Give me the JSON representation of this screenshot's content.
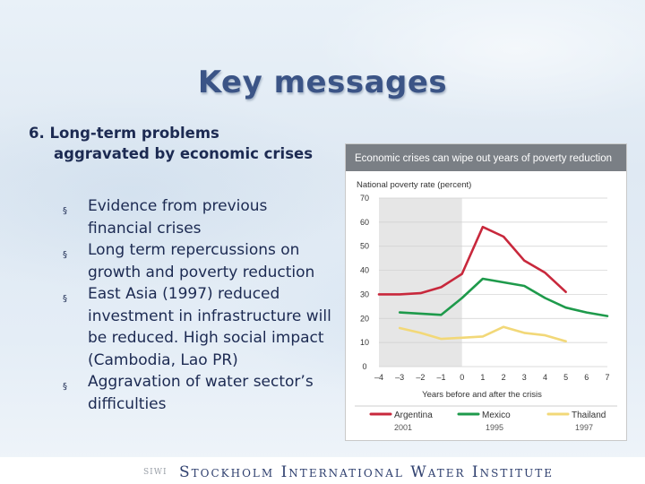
{
  "slide": {
    "title": "Key messages",
    "subtitle_line1": "6. Long-term problems",
    "subtitle_line2": "aggravated by economic crises",
    "bullets": [
      "Evidence from previous financial crises",
      "Long term repercussions on growth and poverty reduction",
      "East Asia (1997) reduced investment in infrastructure will be reduced. High social impact (Cambodia, Lao PR)",
      "Aggravation of water sector’s difficulties"
    ],
    "bullet_marker": "§",
    "footer_logo": "SIWI",
    "footer_org": "Stockholm International Water Institute"
  },
  "chart_data": {
    "type": "line",
    "title": "Economic crises can wipe out years of poverty reduction",
    "ylabel": "National poverty rate (percent)",
    "xlabel": "Years before and after the crisis",
    "xlim": [
      -4,
      7
    ],
    "ylim": [
      0,
      70
    ],
    "xticks": [
      -4,
      -3,
      -2,
      -1,
      0,
      1,
      2,
      3,
      4,
      5,
      6,
      7
    ],
    "xtick_labels": [
      "–4",
      "–3",
      "–2",
      "–1",
      "0",
      "1",
      "2",
      "3",
      "4",
      "5",
      "6",
      "7"
    ],
    "yticks": [
      0,
      10,
      20,
      30,
      40,
      50,
      60,
      70
    ],
    "shaded_region": [
      -4,
      0
    ],
    "grid": true,
    "legend_position": "bottom",
    "series": [
      {
        "name": "Argentina",
        "year": "2001",
        "color": "#c8283c",
        "x": [
          -4,
          -3,
          -2,
          -1,
          0,
          1,
          2,
          3,
          4,
          5
        ],
        "y": [
          30,
          30,
          30.5,
          33,
          38.5,
          58,
          54,
          44,
          39,
          31
        ]
      },
      {
        "name": "Mexico",
        "year": "1995",
        "color": "#1e9a4b",
        "x": [
          -3,
          -2,
          -1,
          0,
          1,
          2,
          3,
          4,
          5,
          6,
          7
        ],
        "y": [
          22.5,
          22,
          21.5,
          28.5,
          36.5,
          35,
          33.5,
          28.5,
          24.5,
          22.5,
          21
        ]
      },
      {
        "name": "Thailand",
        "year": "1997",
        "color": "#f2d878",
        "x": [
          -3,
          -2,
          -1,
          0,
          1,
          2,
          3,
          4,
          5
        ],
        "y": [
          16,
          14,
          11.5,
          12,
          12.5,
          16.5,
          14,
          13,
          10.5
        ]
      }
    ]
  }
}
